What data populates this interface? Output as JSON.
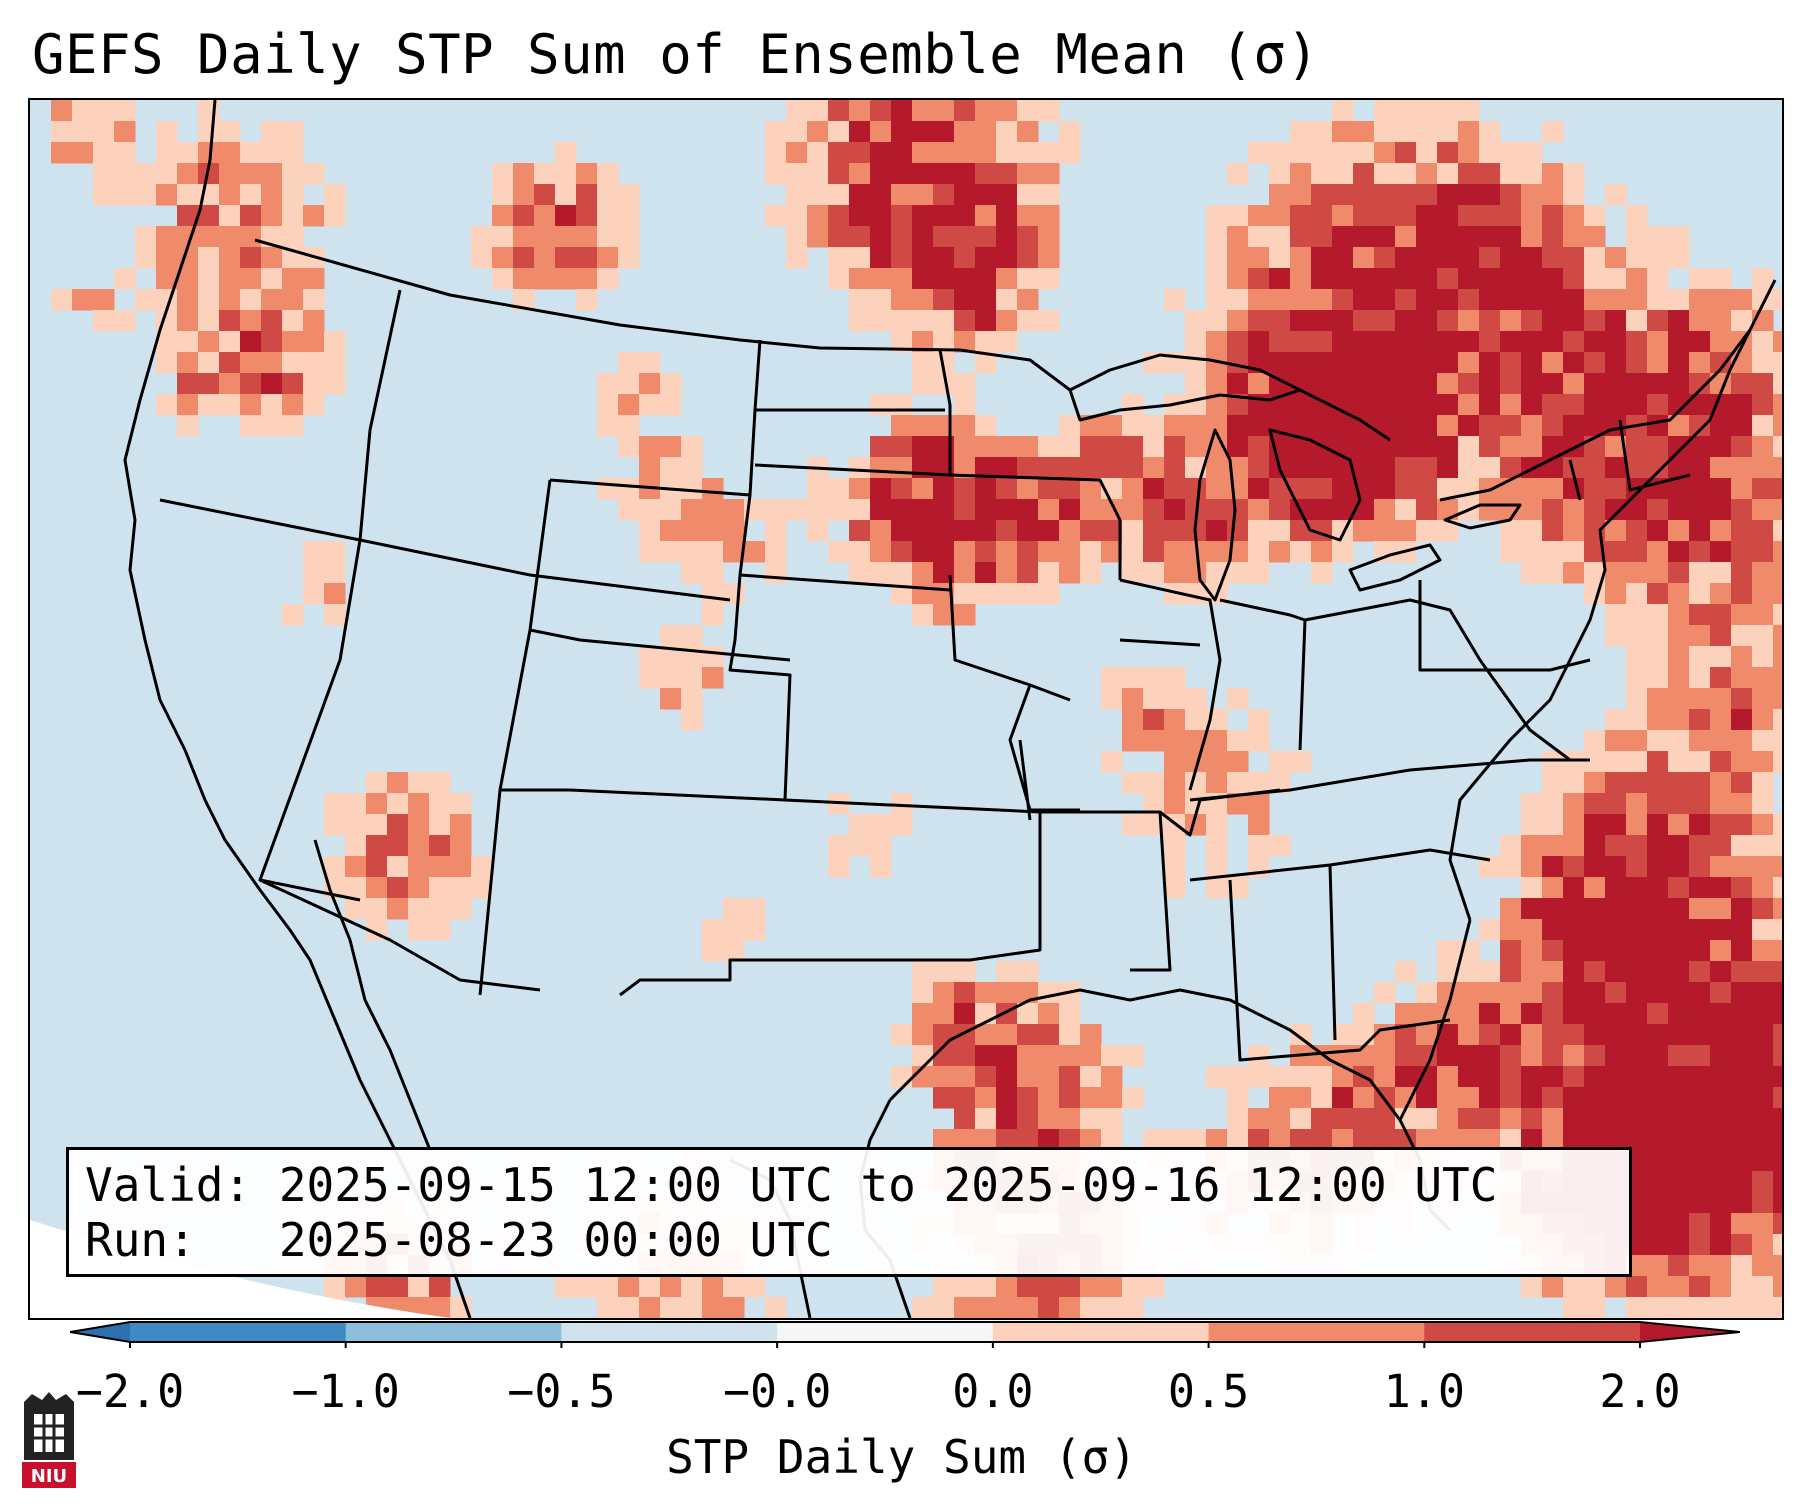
{
  "title": "GEFS Daily STP Sum of Ensemble Mean (σ)",
  "info": {
    "valid_line": "Valid: 2025-09-15 12:00 UTC to 2025-09-16 12:00 UTC",
    "run_line": "Run:   2025-08-23 00:00 UTC"
  },
  "colorbar": {
    "label": "STP Daily Sum (σ)",
    "ticks": [
      "−2.0",
      "−1.0",
      "−0.5",
      "−0.0",
      "0.0",
      "0.5",
      "1.0",
      "2.0"
    ],
    "colors": [
      "#3f8ac2",
      "#8dbfdc",
      "#cfe3ef",
      "#f6f6f6",
      "#fdd2bd",
      "#ef8a6b",
      "#cf4a45"
    ],
    "extend_low_color": "#2f6fb0",
    "extend_high_color": "#b41a2b"
  },
  "logo_text": "NIU",
  "map": {
    "background_color": "#cfe3ef",
    "colors": {
      "light": "#fdd2bd",
      "medium": "#ef8a6b",
      "dark": "#cf4a45",
      "darkest": "#b41a2b"
    }
  }
}
